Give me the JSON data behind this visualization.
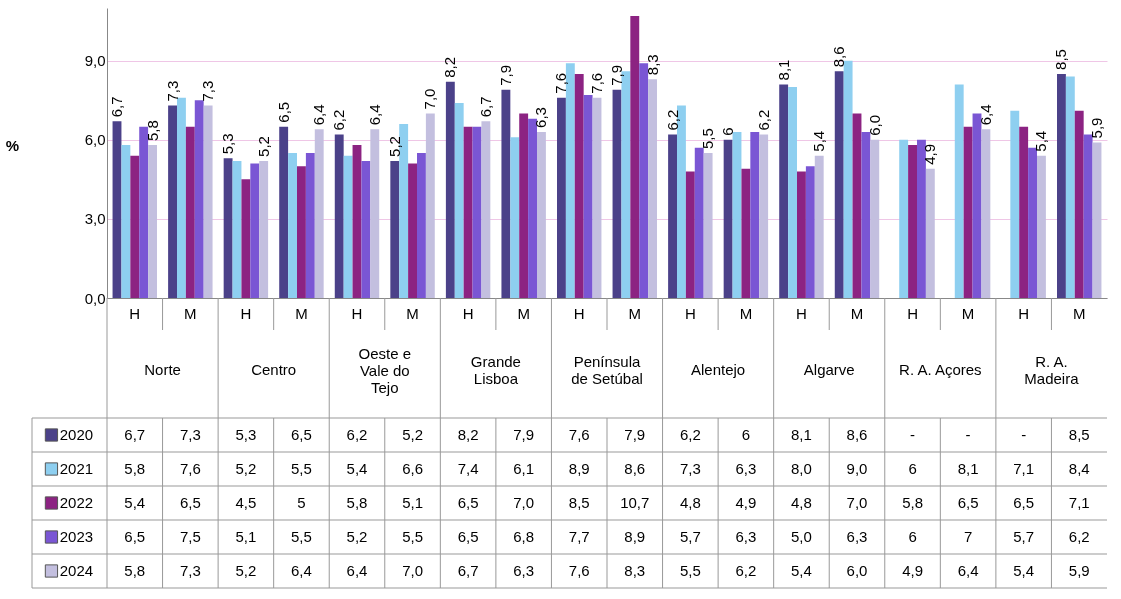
{
  "chart_data": {
    "type": "bar",
    "ylabel": "%",
    "categories": [
      "H",
      "M",
      "H",
      "M",
      "H",
      "M",
      "H",
      "M",
      "H",
      "M",
      "H",
      "M",
      "H",
      "M",
      "H",
      "M",
      "H",
      "M"
    ],
    "annotations": [
      "Norte",
      "Centro",
      "Oeste e\nVale do\nTejo",
      "Grande\nLisboa",
      "Península\nde Setúbal",
      "Alentejo",
      "Algarve",
      "R. A. Açores",
      "R. A.\nMadeira"
    ],
    "series": [
      {
        "name": "2020",
        "color": "#4b4189",
        "data_labels": true,
        "values": [
          6.7,
          7.3,
          5.3,
          6.5,
          6.2,
          5.2,
          8.2,
          7.9,
          7.6,
          7.9,
          6.2,
          6,
          8.1,
          8.6,
          null,
          null,
          null,
          8.5
        ],
        "value_labels": [
          "6,7",
          "7,3",
          "5,3",
          "6,5",
          "6,2",
          "5,2",
          "8,2",
          "7,9",
          "7,6",
          "7,9",
          "6,2",
          "6",
          "8,1",
          "8,6",
          "-",
          "-",
          "-",
          "8,5"
        ]
      },
      {
        "name": "2021",
        "color": "#8ecff0",
        "values": [
          5.8,
          7.6,
          5.2,
          5.5,
          5.4,
          6.6,
          7.4,
          6.1,
          8.9,
          8.6,
          7.3,
          6.3,
          8.0,
          9.0,
          6,
          8.1,
          7.1,
          8.4
        ],
        "value_labels": [
          "5,8",
          "7,6",
          "5,2",
          "5,5",
          "5,4",
          "6,6",
          "7,4",
          "6,1",
          "8,9",
          "8,6",
          "7,3",
          "6,3",
          "8,0",
          "9,0",
          "6",
          "8,1",
          "7,1",
          "8,4"
        ]
      },
      {
        "name": "2022",
        "color": "#8c2382",
        "values": [
          5.4,
          6.5,
          4.5,
          5,
          5.8,
          5.1,
          6.5,
          7.0,
          8.5,
          10.7,
          4.8,
          4.9,
          4.8,
          7.0,
          5.8,
          6.5,
          6.5,
          7.1
        ],
        "value_labels": [
          "5,4",
          "6,5",
          "4,5",
          "5",
          "5,8",
          "5,1",
          "6,5",
          "7,0",
          "8,5",
          "10,7",
          "4,8",
          "4,9",
          "4,8",
          "7,0",
          "5,8",
          "6,5",
          "6,5",
          "7,1"
        ]
      },
      {
        "name": "2023",
        "color": "#7a56d4",
        "values": [
          6.5,
          7.5,
          5.1,
          5.5,
          5.2,
          5.5,
          6.5,
          6.8,
          7.7,
          8.9,
          5.7,
          6.3,
          5.0,
          6.3,
          6,
          7,
          5.7,
          6.2
        ],
        "value_labels": [
          "6,5",
          "7,5",
          "5,1",
          "5,5",
          "5,2",
          "5,5",
          "6,5",
          "6,8",
          "7,7",
          "8,9",
          "5,7",
          "6,3",
          "5,0",
          "6,3",
          "6",
          "7",
          "5,7",
          "6,2"
        ]
      },
      {
        "name": "2024",
        "color": "#c3bfdf",
        "data_labels": true,
        "values": [
          5.8,
          7.3,
          5.2,
          6.4,
          6.4,
          7.0,
          6.7,
          6.3,
          7.6,
          8.3,
          5.5,
          6.2,
          5.4,
          6.0,
          4.9,
          6.4,
          5.4,
          5.9
        ],
        "value_labels": [
          "5,8",
          "7,3",
          "5,2",
          "6,4",
          "6,4",
          "7,0",
          "6,7",
          "6,3",
          "7,6",
          "8,3",
          "5,5",
          "6,2",
          "5,4",
          "6,0",
          "4,9",
          "6,4",
          "5,4",
          "5,9"
        ]
      }
    ],
    "ylim": [
      0,
      11
    ],
    "yticks": [
      {
        "value": 0,
        "label": "0,0"
      },
      {
        "value": 3,
        "label": "3,0"
      },
      {
        "value": 6,
        "label": "6,0"
      },
      {
        "value": 9,
        "label": "9,0"
      }
    ],
    "grid": "y",
    "legend": "bottom left"
  }
}
